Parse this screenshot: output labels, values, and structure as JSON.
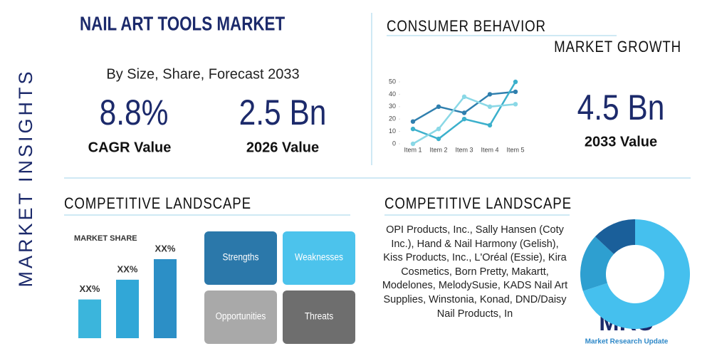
{
  "side_title": "MARKET INSIGHTS",
  "header": {
    "title": "NAIL ART TOOLS MARKET",
    "subtitle": "By Size, Share, Forecast 2033"
  },
  "stats": [
    {
      "value": "8.8%",
      "label": "CAGR Value"
    },
    {
      "value": "2.5 Bn",
      "label": "2026 Value"
    },
    {
      "value": "4.5 Bn",
      "label": "2033 Value"
    }
  ],
  "consumer": {
    "title": "CONSUMER BEHAVIOR",
    "subtitle": "MARKET GROWTH",
    "chart": {
      "type": "line",
      "categories": [
        "Item 1",
        "Item 2",
        "Item 3",
        "Item 4",
        "Item 5"
      ],
      "ylim": [
        0,
        50
      ],
      "yticks": [
        0,
        10,
        20,
        30,
        40,
        50
      ],
      "series": [
        {
          "color": "#2f7fae",
          "values": [
            18,
            30,
            25,
            40,
            42
          ]
        },
        {
          "color": "#3bb0cc",
          "values": [
            12,
            4,
            20,
            15,
            50
          ]
        },
        {
          "color": "#8ad8e6",
          "values": [
            0,
            12,
            38,
            30,
            32
          ]
        }
      ]
    }
  },
  "competitive_left": {
    "title": "COMPETITIVE LANDSCAPE",
    "chart": {
      "type": "bar",
      "title": "MARKET SHARE",
      "values": [
        49,
        74,
        100
      ],
      "bar_labels": [
        "XX%",
        "XX%",
        "XX%"
      ],
      "colors": [
        "#3bb5dc",
        "#31a7d7",
        "#2c8fc6"
      ]
    },
    "swot": [
      "Strengths",
      "Weaknesses",
      "Opportunities",
      "Threats"
    ]
  },
  "competitive_right": {
    "title": "COMPETITIVE LANDSCAPE",
    "text": "OPI Products, Inc., Sally Hansen (Coty Inc.), Hand & Nail Harmony (Gelish), Kiss Products, Inc., L'Oréal (Essie), Kira Cosmetics, Born Pretty, Makartt, Modelones, MelodySusie, KADS Nail Art Supplies, Winstonia, Konad, DND/Daisy Nail Products, In",
    "chart": {
      "type": "pie",
      "values": [
        70,
        17,
        13
      ],
      "colors": [
        "#45c0ee",
        "#2e9fd0",
        "#1a5f9a"
      ]
    }
  },
  "logo": {
    "mark": "MRU",
    "name": "Market Research Update"
  }
}
